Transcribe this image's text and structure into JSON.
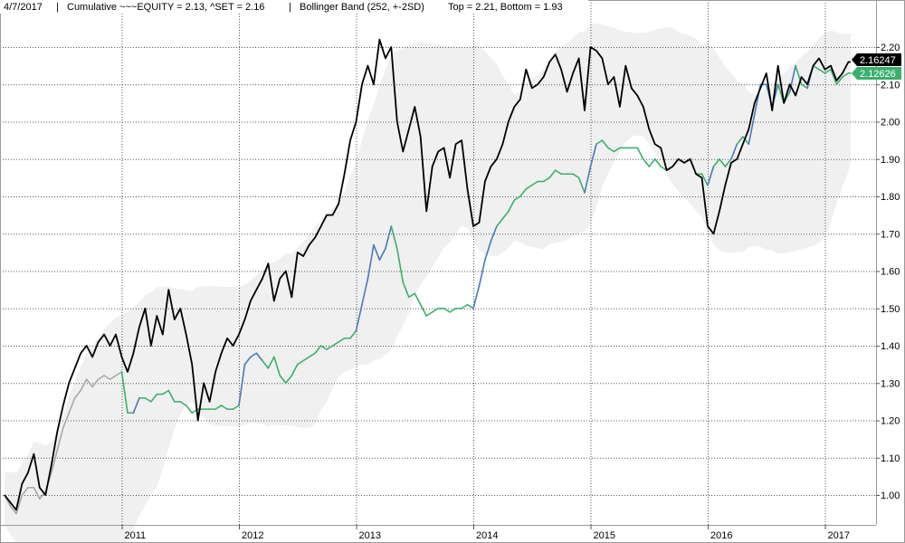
{
  "header": {
    "date": "4/7/2017",
    "sep1": "|",
    "cumulative_label": "Cumulative ~~~EQUITY = 2.13, ^SET = 2.16",
    "sep2": "|",
    "bollinger_label": "Bollinger Band (252, +-2SD)",
    "bollinger_values": "Top = 2.21, Bottom = 1.93"
  },
  "chart_data": {
    "type": "line",
    "xlabel": "",
    "ylabel": "",
    "ylim": [
      0.93,
      2.25
    ],
    "xlim": [
      2010.0,
      2017.3
    ],
    "grid": true,
    "y_ticks": [
      "1.00",
      "1.10",
      "1.20",
      "1.30",
      "1.40",
      "1.50",
      "1.60",
      "1.70",
      "1.80",
      "1.90",
      "2.00",
      "2.10",
      "2.20"
    ],
    "y_tick_values": [
      1.0,
      1.1,
      1.2,
      1.3,
      1.4,
      1.5,
      1.6,
      1.7,
      1.8,
      1.9,
      2.0,
      2.1,
      2.2
    ],
    "x_ticks": [
      "2011",
      "2012",
      "2013",
      "2014",
      "2015",
      "2016",
      "2017"
    ],
    "x_tick_values": [
      2011,
      2012,
      2013,
      2014,
      2015,
      2016,
      2017
    ],
    "end_labels": {
      "set": "2.16247",
      "equity": "2.12626"
    },
    "colors": {
      "set": "#000000",
      "equity_green": "#3cae6e",
      "equity_blue": "#4a78b8",
      "equity_gray": "#a8a8a8",
      "band": "#f0f0f0",
      "grid": "#555555",
      "label_set_bg": "#000000",
      "label_equity_bg": "#3cae6e"
    },
    "series": [
      {
        "key": "set",
        "x": [
          2010.0,
          2010.05,
          2010.1,
          2010.15,
          2010.2,
          2010.25,
          2010.3,
          2010.35,
          2010.4,
          2010.45,
          2010.5,
          2010.55,
          2010.6,
          2010.65,
          2010.7,
          2010.75,
          2010.8,
          2010.85,
          2010.9,
          2010.95,
          2011.0,
          2011.05,
          2011.1,
          2011.15,
          2011.2,
          2011.25,
          2011.3,
          2011.35,
          2011.4,
          2011.45,
          2011.5,
          2011.55,
          2011.6,
          2011.65,
          2011.7,
          2011.75,
          2011.8,
          2011.85,
          2011.9,
          2011.95,
          2012.0,
          2012.05,
          2012.1,
          2012.15,
          2012.2,
          2012.25,
          2012.3,
          2012.35,
          2012.4,
          2012.45,
          2012.5,
          2012.55,
          2012.6,
          2012.65,
          2012.7,
          2012.75,
          2012.8,
          2012.85,
          2012.9,
          2012.95,
          2013.0,
          2013.05,
          2013.1,
          2013.15,
          2013.2,
          2013.25,
          2013.3,
          2013.35,
          2013.4,
          2013.45,
          2013.5,
          2013.55,
          2013.6,
          2013.65,
          2013.7,
          2013.75,
          2013.8,
          2013.85,
          2013.9,
          2013.95,
          2014.0,
          2014.05,
          2014.1,
          2014.15,
          2014.2,
          2014.25,
          2014.3,
          2014.35,
          2014.4,
          2014.45,
          2014.5,
          2014.55,
          2014.6,
          2014.65,
          2014.7,
          2014.75,
          2014.8,
          2014.85,
          2014.9,
          2014.95,
          2015.0,
          2015.05,
          2015.1,
          2015.15,
          2015.2,
          2015.25,
          2015.3,
          2015.35,
          2015.4,
          2015.45,
          2015.5,
          2015.55,
          2015.6,
          2015.65,
          2015.7,
          2015.75,
          2015.8,
          2015.85,
          2015.9,
          2015.95,
          2016.0,
          2016.05,
          2016.1,
          2016.15,
          2016.2,
          2016.25,
          2016.3,
          2016.35,
          2016.4,
          2016.45,
          2016.5,
          2016.55,
          2016.6,
          2016.65,
          2016.7,
          2016.75,
          2016.8,
          2016.85,
          2016.9,
          2016.95,
          2017.0,
          2017.05,
          2017.1,
          2017.15,
          2017.2,
          2017.22
        ],
        "values": [
          1.0,
          0.98,
          0.96,
          1.03,
          1.06,
          1.11,
          1.02,
          1.0,
          1.08,
          1.17,
          1.24,
          1.3,
          1.34,
          1.38,
          1.4,
          1.37,
          1.41,
          1.43,
          1.4,
          1.43,
          1.37,
          1.33,
          1.38,
          1.45,
          1.5,
          1.4,
          1.48,
          1.43,
          1.55,
          1.47,
          1.5,
          1.43,
          1.35,
          1.2,
          1.3,
          1.25,
          1.33,
          1.38,
          1.42,
          1.4,
          1.43,
          1.47,
          1.52,
          1.55,
          1.58,
          1.62,
          1.52,
          1.58,
          1.6,
          1.53,
          1.65,
          1.64,
          1.67,
          1.69,
          1.72,
          1.75,
          1.75,
          1.78,
          1.86,
          1.95,
          2.0,
          2.1,
          2.15,
          2.1,
          2.22,
          2.17,
          2.2,
          2.0,
          1.92,
          1.98,
          2.04,
          1.96,
          1.76,
          1.88,
          1.92,
          1.93,
          1.85,
          1.94,
          1.95,
          1.82,
          1.72,
          1.73,
          1.84,
          1.88,
          1.9,
          1.94,
          2.0,
          2.04,
          2.06,
          2.14,
          2.09,
          2.1,
          2.12,
          2.16,
          2.18,
          2.14,
          2.08,
          2.13,
          2.17,
          2.03,
          2.2,
          2.19,
          2.17,
          2.1,
          2.12,
          2.04,
          2.15,
          2.09,
          2.07,
          2.04,
          1.98,
          1.94,
          1.93,
          1.87,
          1.88,
          1.9,
          1.89,
          1.9,
          1.86,
          1.85,
          1.72,
          1.7,
          1.76,
          1.83,
          1.89,
          1.9,
          1.94,
          1.98,
          2.05,
          2.09,
          2.13,
          2.03,
          2.15,
          2.05,
          2.1,
          2.07,
          2.12,
          2.1,
          2.15,
          2.17,
          2.14,
          2.15,
          2.11,
          2.13,
          2.16,
          2.16
        ]
      },
      {
        "key": "equity",
        "x": [
          2010.0,
          2010.05,
          2010.1,
          2010.15,
          2010.2,
          2010.25,
          2010.3,
          2010.35,
          2010.4,
          2010.45,
          2010.5,
          2010.55,
          2010.6,
          2010.65,
          2010.7,
          2010.75,
          2010.8,
          2010.85,
          2010.9,
          2010.95,
          2011.0,
          2011.05,
          2011.1,
          2011.15,
          2011.2,
          2011.25,
          2011.3,
          2011.35,
          2011.4,
          2011.45,
          2011.5,
          2011.55,
          2011.6,
          2011.65,
          2011.7,
          2011.75,
          2011.8,
          2011.85,
          2011.9,
          2011.95,
          2012.0,
          2012.05,
          2012.1,
          2012.15,
          2012.2,
          2012.25,
          2012.3,
          2012.35,
          2012.4,
          2012.45,
          2012.5,
          2012.55,
          2012.6,
          2012.65,
          2012.7,
          2012.75,
          2012.8,
          2012.85,
          2012.9,
          2012.95,
          2013.0,
          2013.05,
          2013.1,
          2013.15,
          2013.2,
          2013.25,
          2013.3,
          2013.35,
          2013.4,
          2013.45,
          2013.5,
          2013.55,
          2013.6,
          2013.65,
          2013.7,
          2013.75,
          2013.8,
          2013.85,
          2013.9,
          2013.95,
          2014.0,
          2014.05,
          2014.1,
          2014.15,
          2014.2,
          2014.25,
          2014.3,
          2014.35,
          2014.4,
          2014.45,
          2014.5,
          2014.55,
          2014.6,
          2014.65,
          2014.7,
          2014.75,
          2014.8,
          2014.85,
          2014.9,
          2014.95,
          2015.0,
          2015.05,
          2015.1,
          2015.15,
          2015.2,
          2015.25,
          2015.3,
          2015.35,
          2015.4,
          2015.45,
          2015.5,
          2015.55,
          2015.6,
          2015.65,
          2015.7,
          2015.75,
          2015.8,
          2015.85,
          2015.9,
          2015.95,
          2016.0,
          2016.05,
          2016.1,
          2016.15,
          2016.2,
          2016.25,
          2016.3,
          2016.35,
          2016.4,
          2016.45,
          2016.5,
          2016.55,
          2016.6,
          2016.65,
          2016.7,
          2016.75,
          2016.8,
          2016.85,
          2016.9,
          2016.95,
          2017.0,
          2017.05,
          2017.1,
          2017.15,
          2017.2,
          2017.22
        ],
        "values": [
          1.0,
          0.97,
          0.95,
          1.0,
          1.02,
          1.02,
          0.99,
          1.01,
          1.06,
          1.12,
          1.18,
          1.22,
          1.26,
          1.28,
          1.31,
          1.29,
          1.31,
          1.32,
          1.31,
          1.32,
          1.33,
          1.22,
          1.22,
          1.26,
          1.26,
          1.25,
          1.27,
          1.27,
          1.28,
          1.25,
          1.25,
          1.24,
          1.22,
          1.23,
          1.23,
          1.23,
          1.23,
          1.24,
          1.23,
          1.23,
          1.24,
          1.35,
          1.37,
          1.38,
          1.36,
          1.34,
          1.37,
          1.32,
          1.3,
          1.32,
          1.35,
          1.36,
          1.37,
          1.38,
          1.4,
          1.39,
          1.4,
          1.41,
          1.42,
          1.42,
          1.44,
          1.51,
          1.58,
          1.67,
          1.63,
          1.66,
          1.72,
          1.66,
          1.57,
          1.53,
          1.54,
          1.51,
          1.48,
          1.49,
          1.5,
          1.5,
          1.49,
          1.5,
          1.5,
          1.51,
          1.5,
          1.56,
          1.63,
          1.68,
          1.72,
          1.74,
          1.76,
          1.79,
          1.8,
          1.82,
          1.83,
          1.84,
          1.84,
          1.85,
          1.87,
          1.86,
          1.86,
          1.86,
          1.85,
          1.81,
          1.88,
          1.94,
          1.95,
          1.93,
          1.92,
          1.93,
          1.93,
          1.93,
          1.93,
          1.9,
          1.88,
          1.9,
          1.88,
          1.87,
          1.88,
          1.9,
          1.89,
          1.9,
          1.86,
          1.86,
          1.83,
          1.88,
          1.9,
          1.88,
          1.9,
          1.94,
          1.96,
          1.94,
          2.02,
          2.1,
          2.1,
          2.04,
          2.1,
          2.05,
          2.08,
          2.15,
          2.1,
          2.09,
          2.15,
          2.14,
          2.13,
          2.14,
          2.1,
          2.12,
          2.13,
          2.13
        ]
      }
    ]
  }
}
